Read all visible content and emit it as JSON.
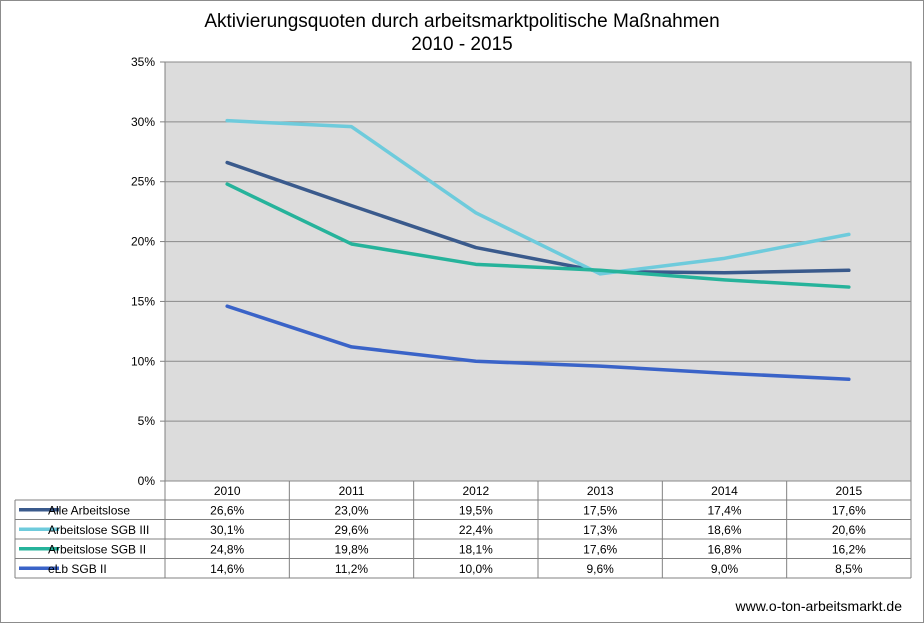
{
  "chart_data": {
    "type": "line",
    "title": "Aktivierungsquoten durch arbeitsmarktpolitische Maßnahmen",
    "subtitle": "2010 - 2015",
    "categories": [
      "2010",
      "2011",
      "2012",
      "2013",
      "2014",
      "2015"
    ],
    "y_ticks": [
      "0%",
      "5%",
      "10%",
      "15%",
      "20%",
      "25%",
      "30%",
      "35%"
    ],
    "ylim": [
      0,
      35
    ],
    "grid": true,
    "legend": "data-table",
    "series": [
      {
        "name": "Alle Arbeitslose",
        "values": [
          26.6,
          23.0,
          19.5,
          17.5,
          17.4,
          17.6
        ],
        "labels": [
          "26,6%",
          "23,0%",
          "19,5%",
          "17,5%",
          "17,4%",
          "17,6%"
        ],
        "color": "#3a5a8c"
      },
      {
        "name": "Arbeitslose SGB III",
        "values": [
          30.1,
          29.6,
          22.4,
          17.3,
          18.6,
          20.6
        ],
        "labels": [
          "30,1%",
          "29,6%",
          "22,4%",
          "17,3%",
          "18,6%",
          "20,6%"
        ],
        "color": "#6ecbdc"
      },
      {
        "name": "Arbeitslose SGB II",
        "values": [
          24.8,
          19.8,
          18.1,
          17.6,
          16.8,
          16.2
        ],
        "labels": [
          "24,8%",
          "19,8%",
          "18,1%",
          "17,6%",
          "16,8%",
          "16,2%"
        ],
        "color": "#26b39b"
      },
      {
        "name": "eLb SGB II",
        "values": [
          14.6,
          11.2,
          10.0,
          9.6,
          9.0,
          8.5
        ],
        "labels": [
          "14,6%",
          "11,2%",
          "10,0%",
          "9,6%",
          "9,0%",
          "8,5%"
        ],
        "color": "#3a63c8"
      }
    ],
    "plot_background": "#dcdcdc"
  },
  "footer": {
    "source": "www.o-ton-arbeitsmarkt.de"
  }
}
